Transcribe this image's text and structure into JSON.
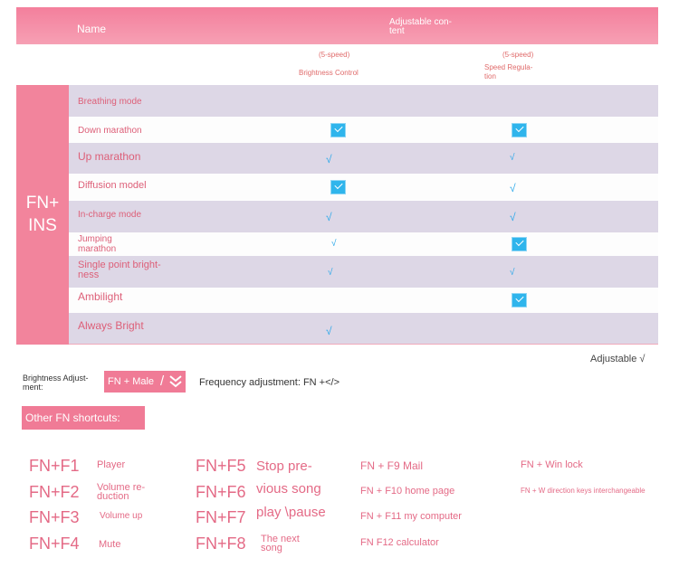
{
  "table": {
    "header": {
      "name": "Name",
      "adjustable_line1": "Adjustable con-",
      "adjustable_line2": "tent"
    },
    "subheader": {
      "col1_speed": "(5-speed)",
      "col1_label": "Brightness Control",
      "col2_speed": "(5-speed)",
      "col2_label_line1": "Speed Regula-",
      "col2_label_line2": "tion"
    },
    "side_label_line1": "FN+",
    "side_label_line2": "INS",
    "rows": [
      {
        "label": "Breathing mode",
        "brightness": "",
        "speed": ""
      },
      {
        "label": "Down marathon",
        "brightness": "checkbox",
        "speed": "checkbox"
      },
      {
        "label": "Up marathon",
        "brightness": "√",
        "speed": "√"
      },
      {
        "label": "Diffusion model",
        "brightness": "checkbox",
        "speed": "√"
      },
      {
        "label": "In-charge mode",
        "brightness": "√",
        "speed": "√"
      },
      {
        "label_line1": "Jumping",
        "label_line2": "marathon",
        "brightness": "√",
        "speed": "checkbox"
      },
      {
        "label_line1": "Single point bright-",
        "label_line2": "ness",
        "brightness": "√",
        "speed": "√"
      },
      {
        "label": "Ambilight",
        "brightness": "",
        "speed": "checkbox"
      },
      {
        "label": "Always Bright",
        "brightness": "√",
        "speed": ""
      }
    ]
  },
  "legend": {
    "adjustable": "Adjustable √"
  },
  "brightness_adjust": {
    "label_line1": "Brightness Adjust-",
    "label_line2": "ment:",
    "key": "FN + Male",
    "slash": "/"
  },
  "frequency_adjust": "Frequency adjustment: FN +</>",
  "other_shortcuts_title": "Other FN shortcuts:",
  "shortcuts": {
    "col1": [
      {
        "key": "FN+F1",
        "desc": "Player"
      },
      {
        "key": "FN+F2",
        "desc_line1": "Volume re-",
        "desc_line2": "duction"
      },
      {
        "key": "FN+F3",
        "desc": "Volume up"
      },
      {
        "key": "FN+F4",
        "desc": "Mute"
      }
    ],
    "col2_keys": [
      "FN+F5",
      "FN+F6",
      "FN+F7",
      "FN+F8"
    ],
    "col2_desc": [
      "Stop pre-",
      "vious song",
      "play \\pause"
    ],
    "col2_next_line1": "The next",
    "col2_next_line2": "song",
    "col3": [
      "FN + F9 Mail",
      "FN + F10 home page",
      "FN + F11 my computer",
      "FN F12 calculator"
    ],
    "col4": [
      "FN + Win lock",
      "FN + W direction keys interchangeable"
    ]
  },
  "colors": {
    "header_pink": "#f47f9c",
    "side_pink": "#f2849c",
    "row_gray": "#ddd7e6",
    "check_blue": "#2fb5ec",
    "text_pink": "#dd5f78"
  }
}
